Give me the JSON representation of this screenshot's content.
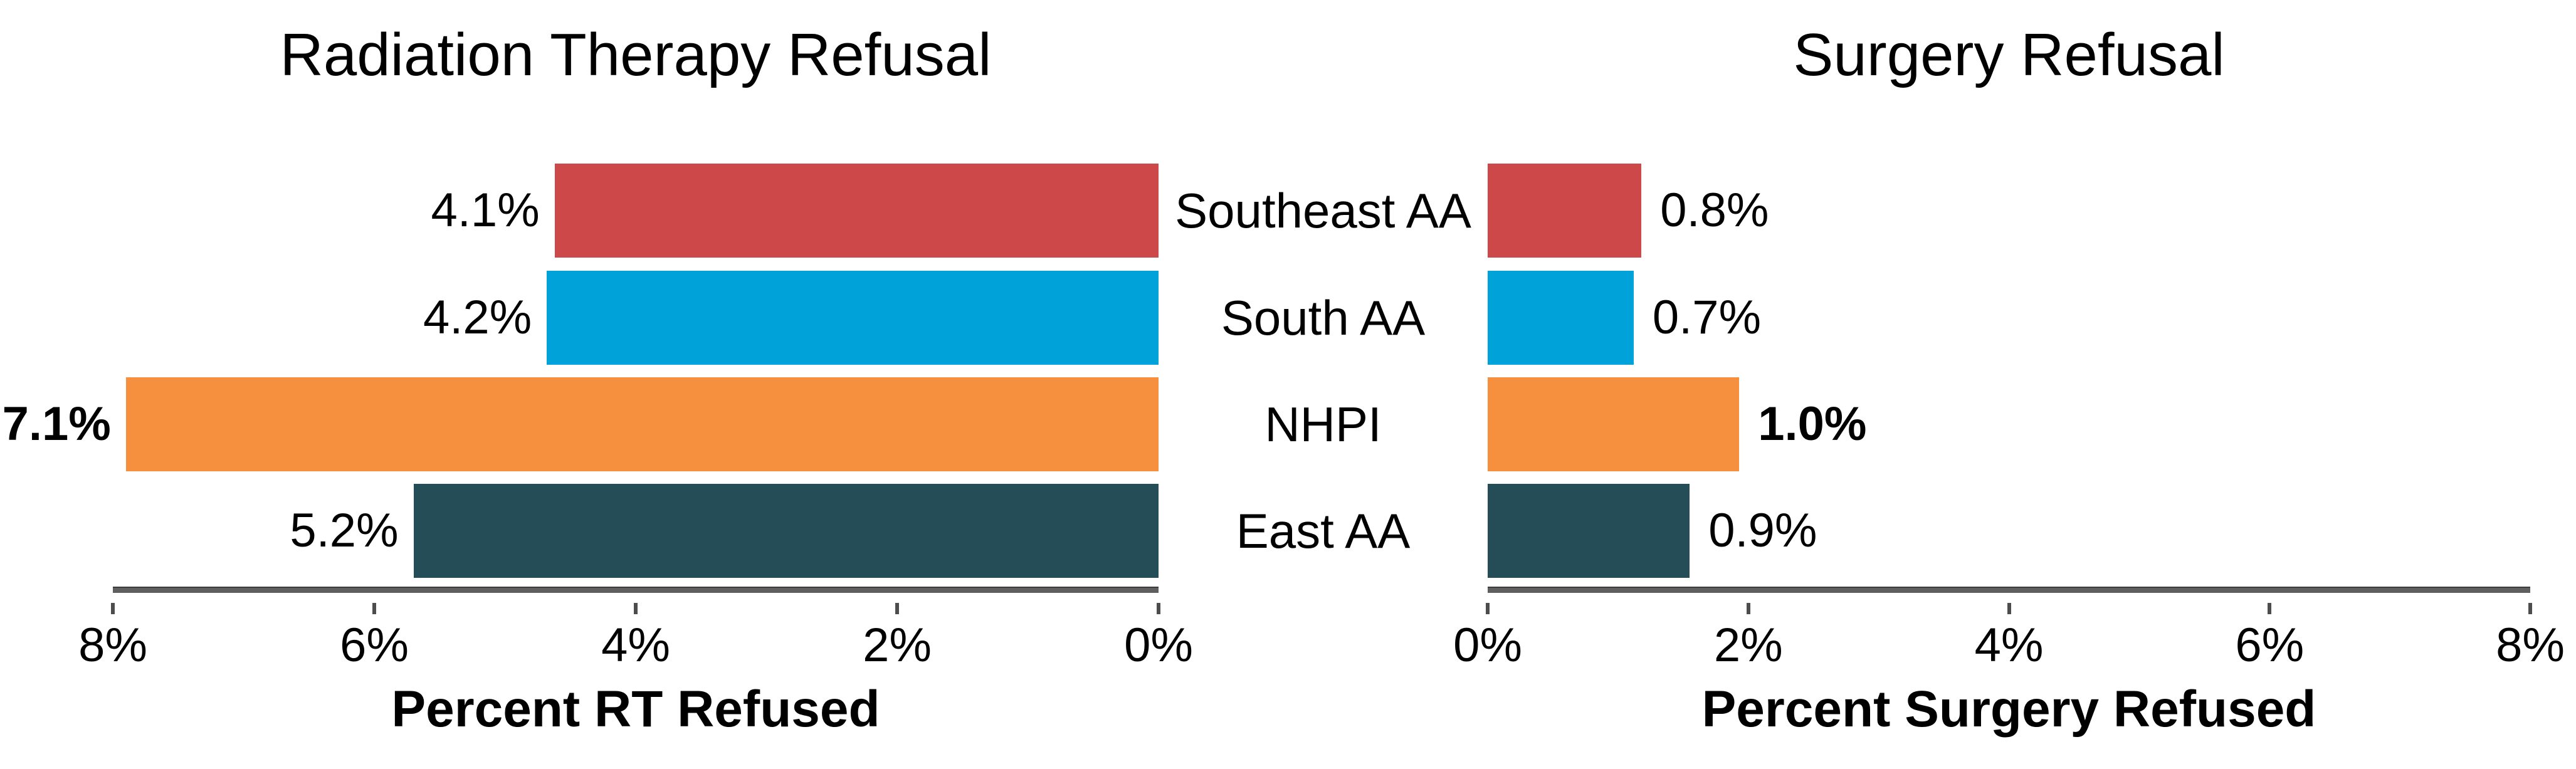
{
  "figure": {
    "background": "#ffffff",
    "text_color": "#000000",
    "axis_line_color": "#5f5f5f",
    "tick_color": "#4d4d4d",
    "categories": [
      "Southeast AA",
      "South AA",
      "NHPI",
      "East AA"
    ],
    "bar_colors": [
      "#cd4848",
      "#00a2da",
      "#f7903e",
      "#254d57"
    ]
  },
  "chart_data": [
    {
      "type": "bar",
      "orientation": "horizontal",
      "direction": "right-to-left",
      "title": "Radiation Therapy Refusal",
      "xlabel": "Percent RT Refused",
      "categories": [
        "Southeast AA",
        "South AA",
        "NHPI",
        "East AA"
      ],
      "values": [
        4.1,
        4.2,
        7.1,
        5.2
      ],
      "value_labels": [
        "4.1%",
        "4.2%",
        "7.1%",
        "5.2%"
      ],
      "bold_flags": [
        false,
        false,
        true,
        false
      ],
      "bar_colors": [
        "#cd4848",
        "#00a2da",
        "#f7903e",
        "#254d57"
      ],
      "axis_tick_labels": [
        "8%",
        "6%",
        "4%",
        "2%",
        "0%"
      ],
      "xlim": [
        8,
        0
      ],
      "grid": false,
      "legend": false,
      "bar_display_extents": [
        4.62,
        4.68,
        7.9,
        5.7
      ]
    },
    {
      "type": "bar",
      "orientation": "horizontal",
      "direction": "left-to-right",
      "title": "Surgery Refusal",
      "xlabel": "Percent Surgery Refused",
      "categories": [
        "Southeast AA",
        "South AA",
        "NHPI",
        "East AA"
      ],
      "values": [
        0.8,
        0.7,
        1.0,
        0.9
      ],
      "value_labels": [
        "0.8%",
        "0.7%",
        "1.0%",
        "0.9%"
      ],
      "bold_flags": [
        false,
        false,
        true,
        false
      ],
      "bar_colors": [
        "#cd4848",
        "#00a2da",
        "#f7903e",
        "#254d57"
      ],
      "axis_tick_labels": [
        "0%",
        "2%",
        "4%",
        "6%",
        "8%"
      ],
      "xlim": [
        0,
        8
      ],
      "grid": false,
      "legend": false,
      "bar_display_extents": [
        1.18,
        1.12,
        1.93,
        1.55
      ]
    }
  ]
}
